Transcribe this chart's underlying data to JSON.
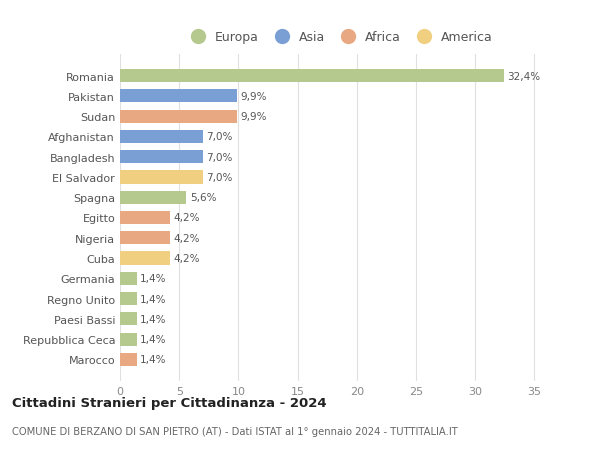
{
  "categories": [
    "Marocco",
    "Repubblica Ceca",
    "Paesi Bassi",
    "Regno Unito",
    "Germania",
    "Cuba",
    "Nigeria",
    "Egitto",
    "Spagna",
    "El Salvador",
    "Bangladesh",
    "Afghanistan",
    "Sudan",
    "Pakistan",
    "Romania"
  ],
  "values": [
    1.4,
    1.4,
    1.4,
    1.4,
    1.4,
    4.2,
    4.2,
    4.2,
    5.6,
    7.0,
    7.0,
    7.0,
    9.9,
    9.9,
    32.4
  ],
  "labels": [
    "1,4%",
    "1,4%",
    "1,4%",
    "1,4%",
    "1,4%",
    "4,2%",
    "4,2%",
    "4,2%",
    "5,6%",
    "7,0%",
    "7,0%",
    "7,0%",
    "9,9%",
    "9,9%",
    "32,4%"
  ],
  "colors": [
    "#e8a882",
    "#b5c98e",
    "#b5c98e",
    "#b5c98e",
    "#b5c98e",
    "#f0d080",
    "#e8a882",
    "#e8a882",
    "#b5c98e",
    "#f0d080",
    "#7a9fd4",
    "#7a9fd4",
    "#e8a882",
    "#7a9fd4",
    "#b5c98e"
  ],
  "legend_items": [
    {
      "label": "Europa",
      "color": "#b5c98e"
    },
    {
      "label": "Asia",
      "color": "#7a9fd4"
    },
    {
      "label": "Africa",
      "color": "#e8a882"
    },
    {
      "label": "America",
      "color": "#f0d080"
    }
  ],
  "title": "Cittadini Stranieri per Cittadinanza - 2024",
  "subtitle": "COMUNE DI BERZANO DI SAN PIETRO (AT) - Dati ISTAT al 1° gennaio 2024 - TUTTITALIA.IT",
  "xlim": [
    0,
    37
  ],
  "xticks": [
    0,
    5,
    10,
    15,
    20,
    25,
    30,
    35
  ],
  "background_color": "#ffffff",
  "grid_color": "#e0e0e0"
}
